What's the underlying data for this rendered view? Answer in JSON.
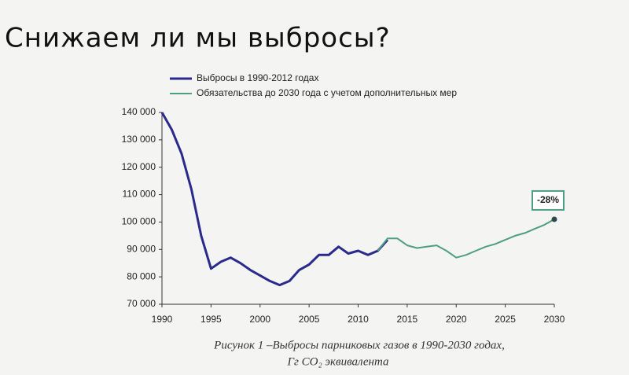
{
  "chart_data": {
    "type": "line",
    "title": "Снижаем ли мы выбросы?",
    "caption": [
      "Рисунок 1 –Выбросы парниковых газов в 1990-2030 годах,",
      "Гг CO₂ эквивалента"
    ],
    "annotation": "-28%",
    "xlim": [
      1990,
      2030
    ],
    "xticks": [
      1990,
      1995,
      2000,
      2005,
      2010,
      2015,
      2020,
      2025,
      2030
    ],
    "ylim": [
      70000,
      140000
    ],
    "yticks": [
      {
        "value": 70000,
        "label": "70 000"
      },
      {
        "value": 80000,
        "label": "80 000"
      },
      {
        "value": 90000,
        "label": "90 000"
      },
      {
        "value": 100000,
        "label": "100 000"
      },
      {
        "value": 110000,
        "label": "110 000"
      },
      {
        "value": 120000,
        "label": "120 000"
      },
      {
        "value": 130000,
        "label": "130 000"
      },
      {
        "value": 140000,
        "label": "140 000"
      }
    ],
    "legend": "top-left",
    "series": [
      {
        "name": "Выбросы в 1990-2012 годах",
        "color": "#2a2a8c",
        "width": 3,
        "x": [
          1990,
          1991,
          1992,
          1993,
          1994,
          1995,
          1996,
          1997,
          1998,
          1999,
          2000,
          2001,
          2002,
          2003,
          2004,
          2005,
          2006,
          2007,
          2008,
          2009,
          2010,
          2011,
          2012,
          2013
        ],
        "values": [
          140000,
          133700,
          125000,
          112000,
          95000,
          83000,
          85500,
          87000,
          85000,
          82500,
          80500,
          78500,
          77000,
          78500,
          82500,
          84500,
          88000,
          88000,
          91000,
          88500,
          89500,
          88000,
          89500,
          93500
        ]
      },
      {
        "name": "Обязательства до 2030 года с учетом дополнительных мер",
        "color": "#4e9e86",
        "width": 2,
        "x": [
          2012,
          2013,
          2014,
          2015,
          2016,
          2017,
          2018,
          2019,
          2020,
          2021,
          2022,
          2023,
          2024,
          2025,
          2026,
          2027,
          2028,
          2029,
          2030
        ],
        "values": [
          89500,
          94000,
          94000,
          91500,
          90500,
          91000,
          91500,
          89500,
          87000,
          88000,
          89500,
          91000,
          92000,
          93500,
          95000,
          96000,
          97500,
          99000,
          101000
        ]
      }
    ]
  }
}
